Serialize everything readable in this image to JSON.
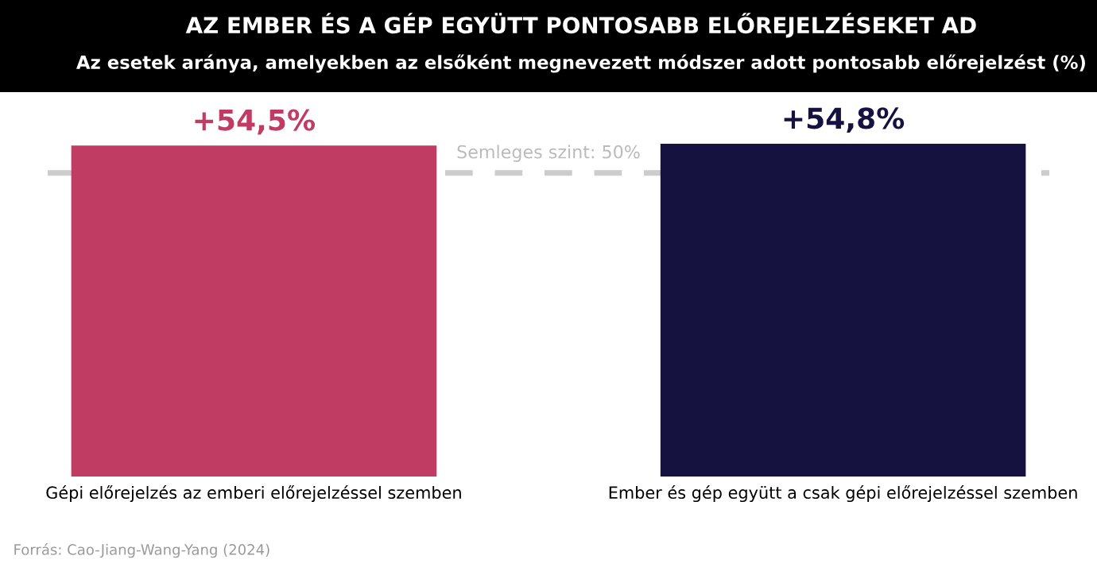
{
  "chart_data": {
    "type": "bar",
    "title": "AZ EMBER ÉS A GÉP EGYÜTT PONTOSABB ELŐREJELZÉSEKET AD",
    "subtitle": "Az esetek aránya, amelyekben az elsőként megnevezett módszer adott pontosabb előrejelzést (%)",
    "categories": [
      "Gépi előrejelzés az emberi előrejelzéssel szemben",
      "Ember és gép együtt a csak gépi előrejelzéssel szemben"
    ],
    "values": [
      54.5,
      54.8
    ],
    "colors": [
      "#c03c62",
      "#15123f"
    ],
    "value_labels": [
      "+54,5%",
      "+54,8%"
    ],
    "tick_labels": "x",
    "grid": false,
    "legend": false,
    "ref_lines": [
      {
        "axis": "y",
        "value": 50,
        "label": "Semleges szint: 50%",
        "color": "#cccccc",
        "line_style": "dashed"
      }
    ],
    "annotations": [
      "Forrás: Cao-Jiang-Wang-Yang (2024)"
    ]
  }
}
